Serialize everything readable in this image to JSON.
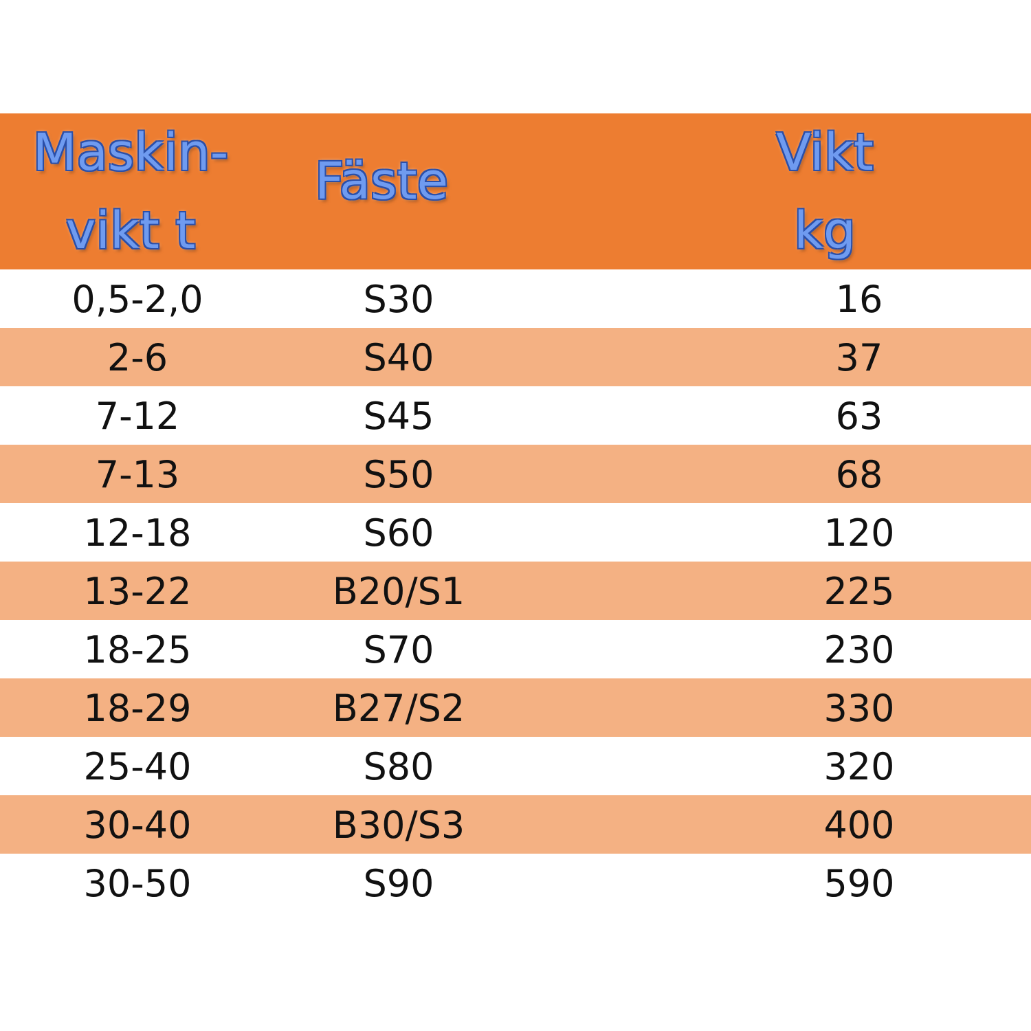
{
  "table": {
    "header": {
      "machine_weight_line1": "Maskin-",
      "machine_weight_line2": "vikt t",
      "attachment": "Fäste",
      "weight_line1": "Vikt",
      "weight_line2": "kg"
    },
    "rows": [
      {
        "machine_weight": "0,5-2,0",
        "attachment": "S30",
        "weight": "16"
      },
      {
        "machine_weight": "2-6",
        "attachment": "S40",
        "weight": "37"
      },
      {
        "machine_weight": "7-12",
        "attachment": "S45",
        "weight": "63"
      },
      {
        "machine_weight": "7-13",
        "attachment": "S50",
        "weight": "68"
      },
      {
        "machine_weight": "12-18",
        "attachment": "S60",
        "weight": "120"
      },
      {
        "machine_weight": "13-22",
        "attachment": "B20/S1",
        "weight": "225"
      },
      {
        "machine_weight": "18-25",
        "attachment": "S70",
        "weight": "230"
      },
      {
        "machine_weight": "18-29",
        "attachment": "B27/S2",
        "weight": "330"
      },
      {
        "machine_weight": "25-40",
        "attachment": "S80",
        "weight": "320"
      },
      {
        "machine_weight": "30-40",
        "attachment": "B30/S3",
        "weight": "400"
      },
      {
        "machine_weight": "30-50",
        "attachment": "S90",
        "weight": "590"
      }
    ]
  },
  "colors": {
    "header_bg": "#ed7d31",
    "band_bg": "#f4b183",
    "header_text": "#6f9bf0"
  }
}
